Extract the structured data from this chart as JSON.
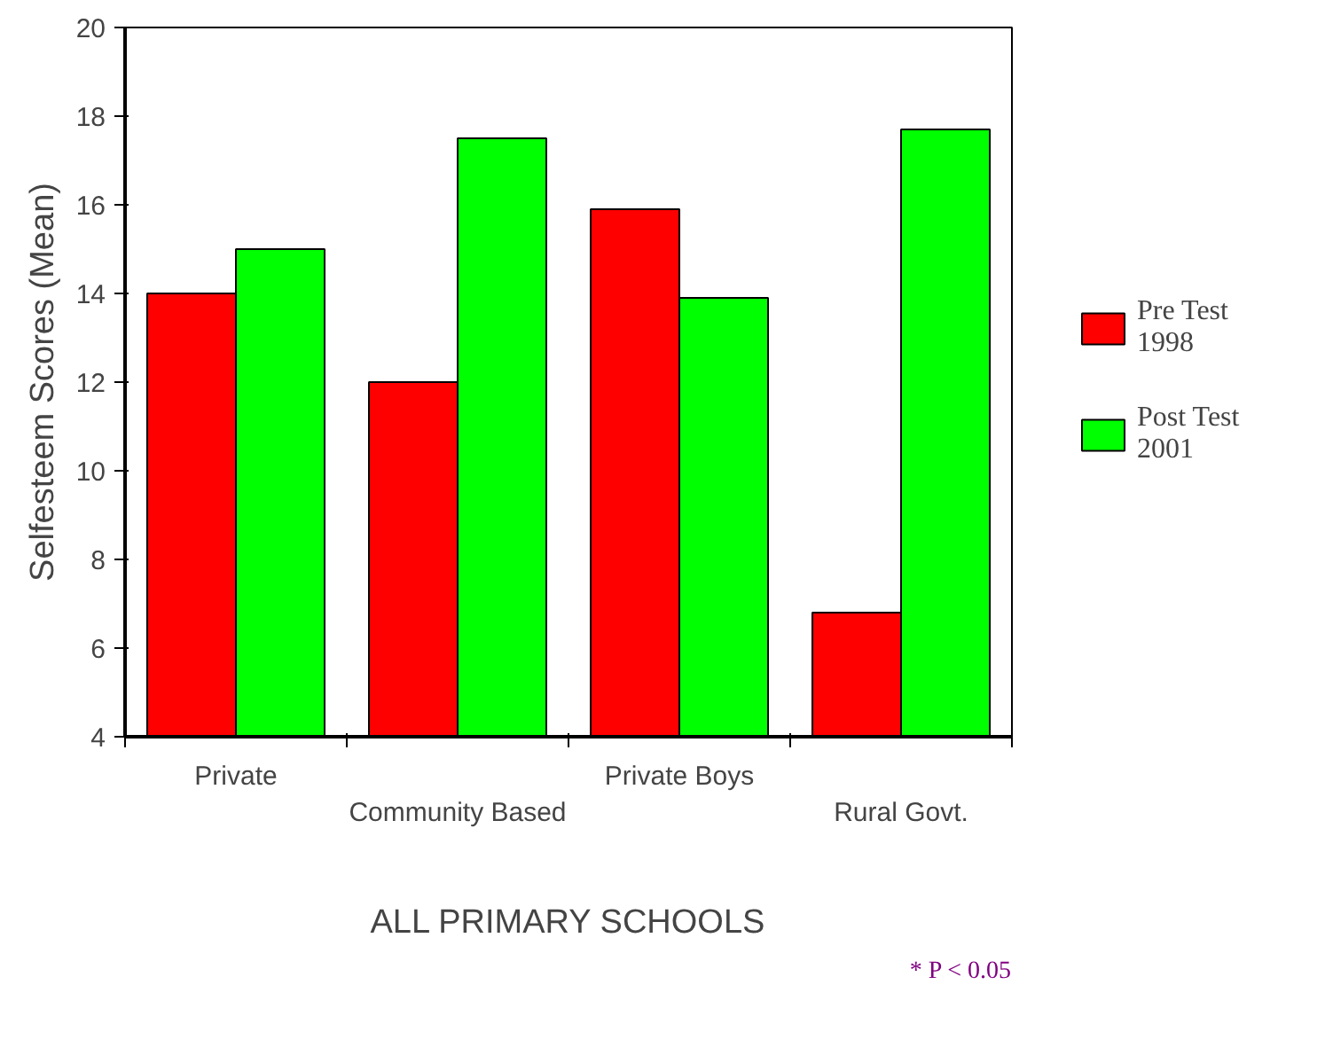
{
  "chart_data": {
    "type": "bar",
    "xlabel": "ALL PRIMARY SCHOOLS",
    "ylabel": "Selfesteem Scores (Mean)",
    "categories": [
      "Private",
      "Community Based",
      "Private Boys",
      "Rural Govt."
    ],
    "series": [
      {
        "name": "Pre Test 1998",
        "color": "#ff0000",
        "values": [
          14.0,
          12.0,
          15.9,
          6.8
        ]
      },
      {
        "name": "Post Test 2001",
        "color": "#00ff00",
        "values": [
          15.0,
          17.5,
          13.9,
          17.7
        ]
      }
    ],
    "ylim": [
      4,
      20
    ],
    "yticks": [
      4,
      6,
      8,
      10,
      12,
      14,
      16,
      18,
      20
    ],
    "grid": false,
    "legend": "right",
    "annotations": [
      "* P < 0.05"
    ]
  }
}
